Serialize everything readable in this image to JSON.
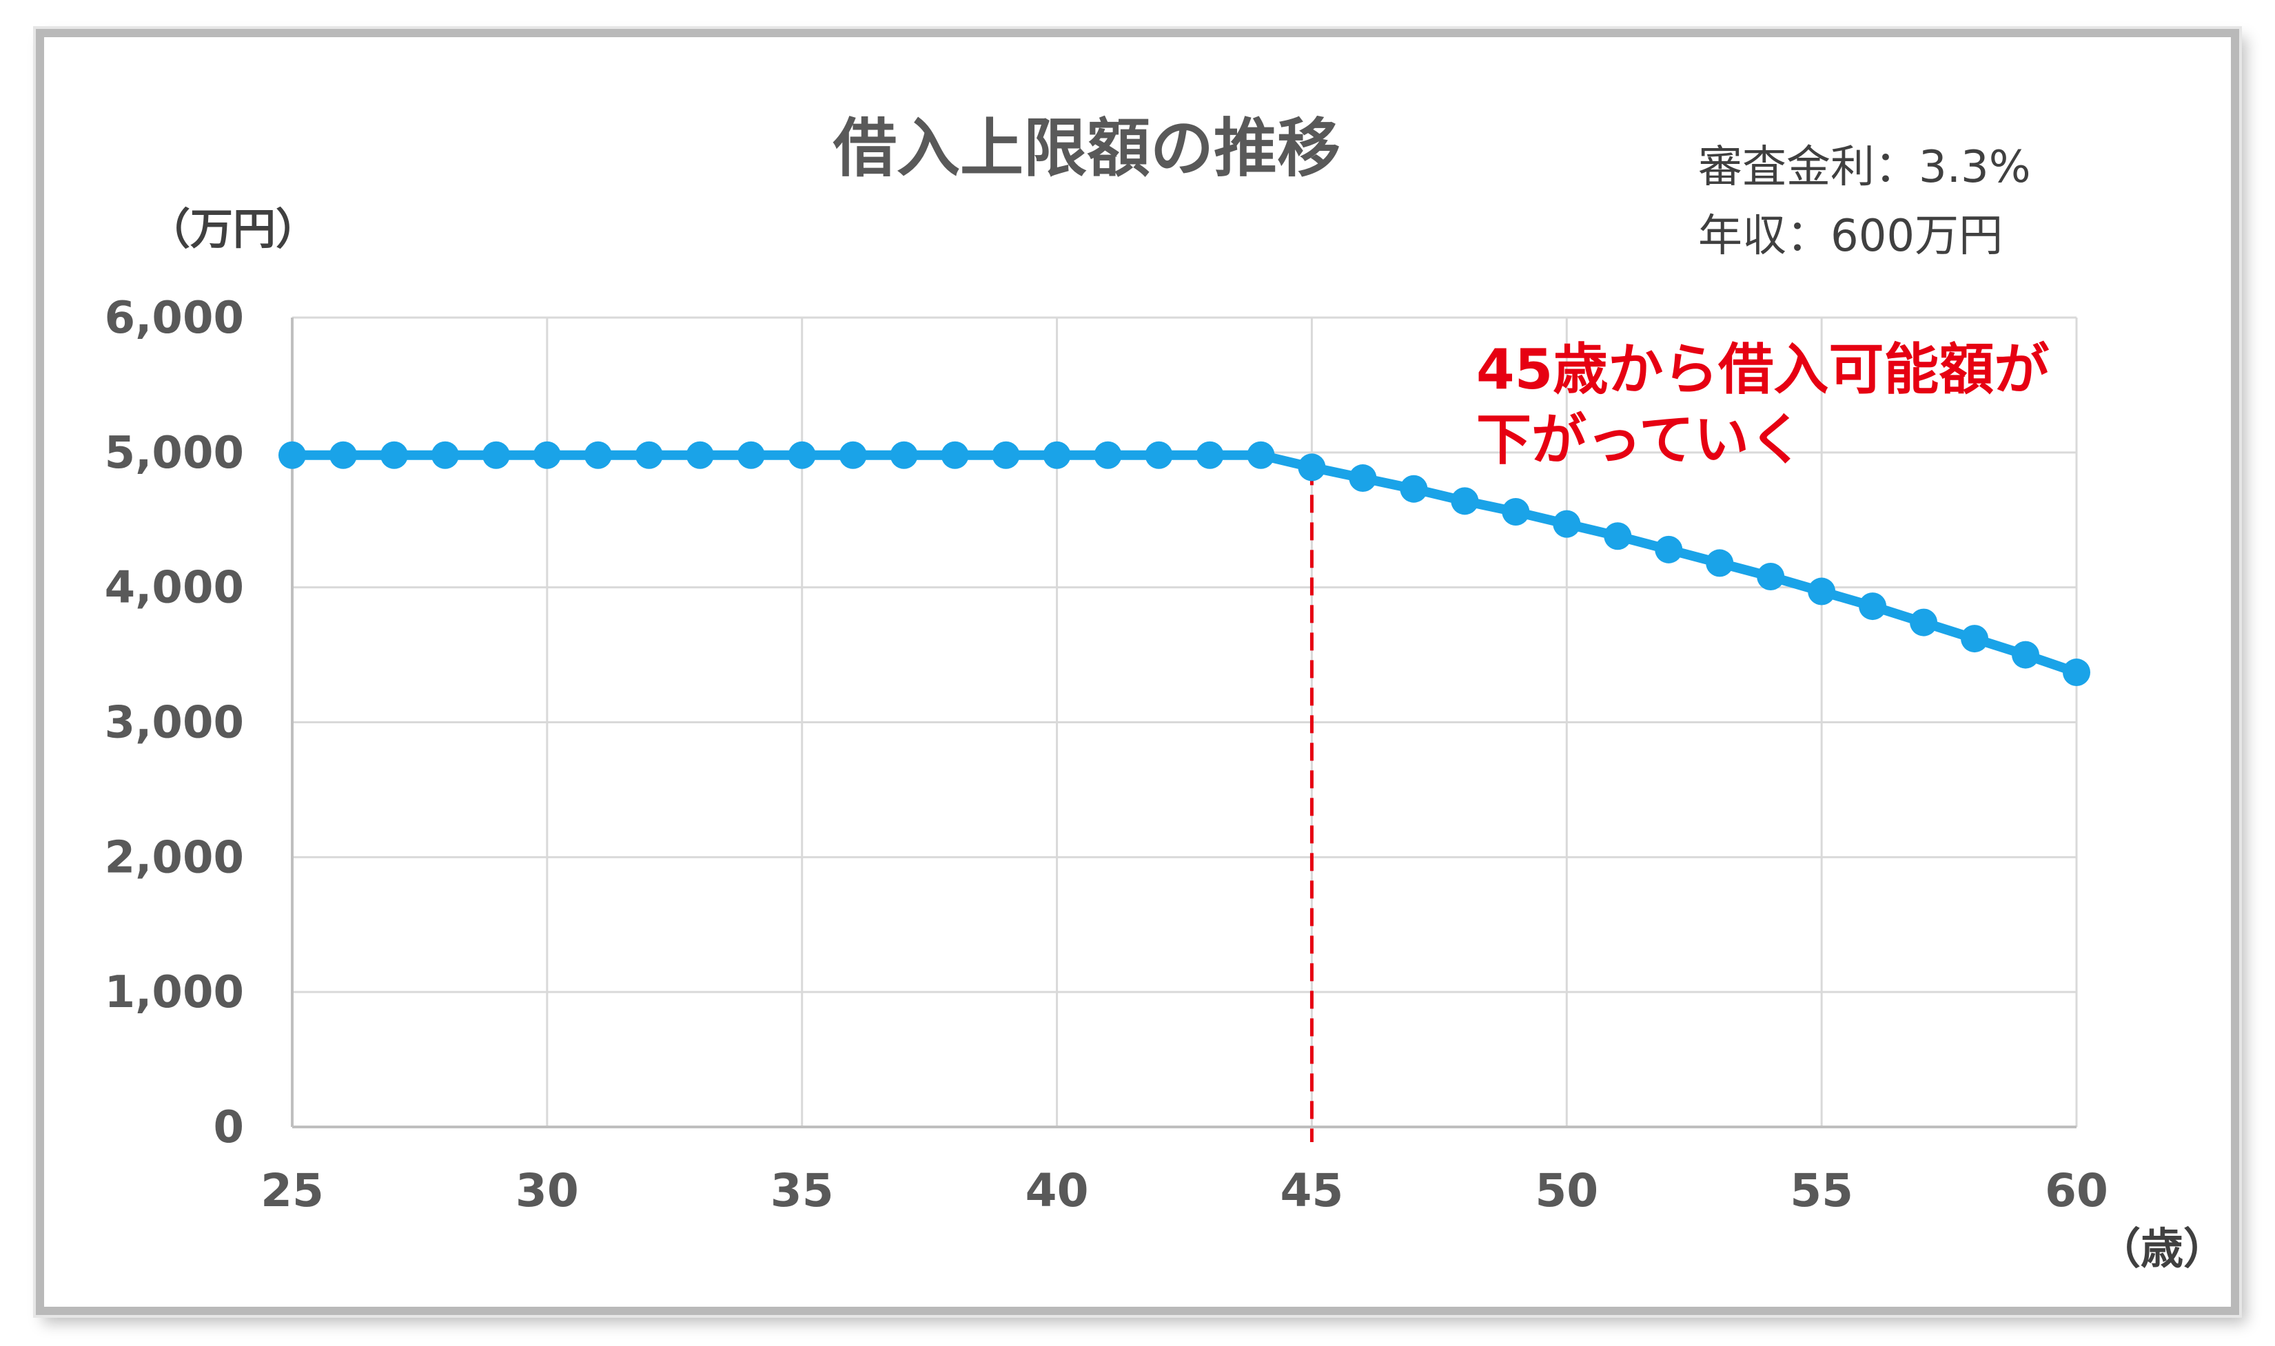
{
  "chart_data": {
    "type": "line",
    "title": "借入上限額の推移",
    "notes": [
      "審査金利：3.3%",
      "年収：600万円"
    ],
    "y_unit_label": "（万円）",
    "x_unit_label": "（歳）",
    "annotation": [
      "45歳から借入可能額が",
      "下がっていく"
    ],
    "xlim": [
      25,
      60
    ],
    "ylim": [
      0,
      6000
    ],
    "x_ticks": [
      25,
      30,
      35,
      40,
      45,
      50,
      55,
      60
    ],
    "y_ticks": [
      0,
      1000,
      2000,
      3000,
      4000,
      5000,
      6000
    ],
    "y_tick_labels": [
      "0",
      "1,000",
      "2,000",
      "3,000",
      "4,000",
      "5,000",
      "6,000"
    ],
    "grid": true,
    "reference_line": {
      "x": 45,
      "style": "dashed",
      "color": "#e60012"
    },
    "series": [
      {
        "color": "#1aa3e8",
        "x": [
          25,
          26,
          27,
          28,
          29,
          30,
          31,
          32,
          33,
          34,
          35,
          36,
          37,
          38,
          39,
          40,
          41,
          42,
          43,
          44,
          45,
          46,
          47,
          48,
          49,
          50,
          51,
          52,
          53,
          54,
          55,
          56,
          57,
          58,
          59,
          60
        ],
        "values": [
          4980,
          4980,
          4980,
          4980,
          4980,
          4980,
          4980,
          4980,
          4980,
          4980,
          4980,
          4980,
          4980,
          4980,
          4980,
          4980,
          4980,
          4980,
          4980,
          4980,
          4890,
          4810,
          4730,
          4640,
          4560,
          4470,
          4380,
          4280,
          4180,
          4080,
          3970,
          3860,
          3740,
          3620,
          3500,
          3370
        ]
      }
    ]
  }
}
